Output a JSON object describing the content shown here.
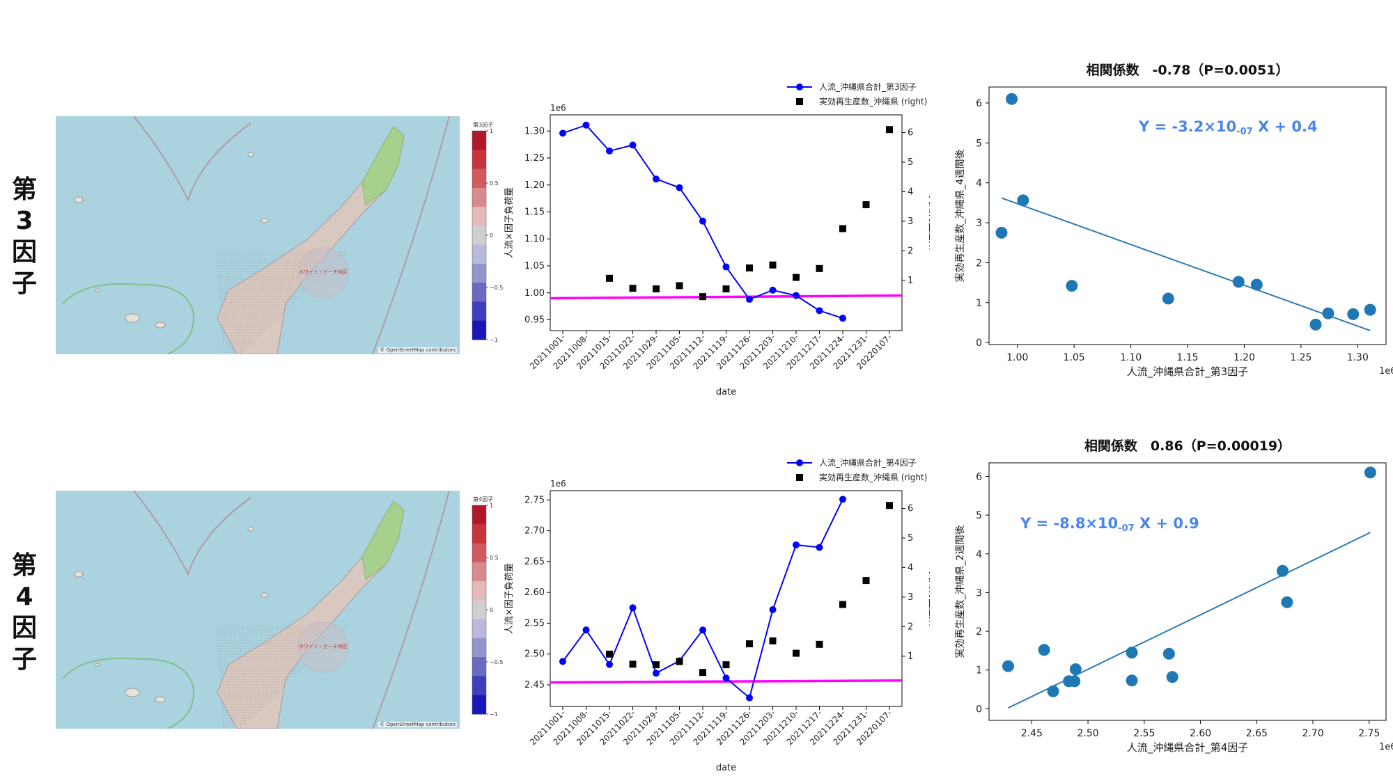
{
  "rows": [
    {
      "label_chars": [
        "第",
        "3",
        "因",
        "子"
      ],
      "map": {
        "colorbar_title": "第3因子",
        "colorbar_ticks": [
          "1",
          "0.5",
          "0",
          "−0.5",
          "−1"
        ],
        "attribution": "© OpenStreetMap contributors",
        "place_label": "ホワイト・ビーチ地区"
      },
      "chart_data": [
        {
          "type": "line",
          "unit_label": "1e6",
          "xlabel": "date",
          "ylabel": "人流×因子負荷量",
          "ylabel_right": "実効再生産数",
          "ylim": [
            0.93,
            1.33
          ],
          "yticks": [
            "0.95",
            "1.00",
            "1.05",
            "1.10",
            "1.15",
            "1.20",
            "1.25",
            "1.30"
          ],
          "ylim_right": [
            -0.7,
            6.6
          ],
          "yticks_right": [
            "1",
            "2",
            "3",
            "4",
            "5",
            "6"
          ],
          "categories": [
            "20211001-",
            "20211008-",
            "20211015-",
            "20211022-",
            "20211029-",
            "20211105-",
            "20211112-",
            "20211119-",
            "20211126-",
            "20211203-",
            "20211210-",
            "20211217-",
            "20211224-",
            "20211231-",
            "20220107-"
          ],
          "series": [
            {
              "name": "人流_沖縄県合計_第3因子",
              "axis": "left",
              "color": "#0000ff",
              "marker": "circle",
              "values": [
                1.296,
                1.311,
                1.263,
                1.274,
                1.211,
                1.195,
                1.133,
                1.048,
                0.988,
                1.005,
                0.995,
                0.967,
                0.953,
                null,
                null
              ]
            },
            {
              "name": "実効再生産数_沖縄県 (right)",
              "axis": "right",
              "color": "#000000",
              "marker": "square",
              "values": [
                null,
                null,
                1.07,
                0.73,
                0.71,
                0.82,
                0.45,
                0.71,
                1.42,
                1.52,
                1.1,
                1.4,
                2.75,
                3.56,
                6.1
              ]
            }
          ],
          "reference_line": {
            "color": "#ff00ff",
            "y_start": 0.99,
            "y_end": 0.995
          },
          "legend_position": "top-right"
        },
        {
          "type": "scatter",
          "title": "相関係数　-0.78（P=0.0051）",
          "unit_label": "1e6",
          "xlabel": "人流_沖縄県合計_第3因子",
          "ylabel": "実効再生産数_沖縄県_4週間後",
          "xlim": [
            0.975,
            1.325
          ],
          "xticks": [
            "1.00",
            "1.05",
            "1.10",
            "1.15",
            "1.20",
            "1.25",
            "1.30"
          ],
          "ylim": [
            -0.05,
            6.4
          ],
          "yticks": [
            "0",
            "1",
            "2",
            "3",
            "4",
            "5",
            "6"
          ],
          "x": [
            0.995,
            1.005,
            0.986,
            1.048,
            1.133,
            1.195,
            1.211,
            1.263,
            1.274,
            1.296,
            1.311
          ],
          "y": [
            6.1,
            3.56,
            2.75,
            1.42,
            1.1,
            1.52,
            1.45,
            0.45,
            0.73,
            0.71,
            0.82
          ],
          "fit": {
            "x_start": 0.986,
            "y_start": 3.62,
            "x_end": 1.311,
            "y_end": 0.3
          },
          "equation": {
            "prefix": "Y = -3.2×10",
            "exponent": "-07",
            "suffix": " X + 0.4"
          },
          "point_color": "#1f77b4",
          "equation_color": "#4a86e8"
        }
      ]
    },
    {
      "label_chars": [
        "第",
        "4",
        "因",
        "子"
      ],
      "map": {
        "colorbar_title": "第4因子",
        "colorbar_ticks": [
          "1",
          "0.5",
          "0",
          "−0.5",
          "−1"
        ],
        "attribution": "© OpenStreetMap contributors",
        "place_label": "ホワイト・ビーチ地区"
      },
      "chart_data": [
        {
          "type": "line",
          "unit_label": "1e6",
          "xlabel": "date",
          "ylabel": "人流×因子負荷量",
          "ylabel_right": "実効再生産数",
          "ylim": [
            2.415,
            2.765
          ],
          "yticks": [
            "2.45",
            "2.50",
            "2.55",
            "2.60",
            "2.65",
            "2.70",
            "2.75"
          ],
          "ylim_right": [
            -0.7,
            6.6
          ],
          "yticks_right": [
            "1",
            "2",
            "3",
            "4",
            "5",
            "6"
          ],
          "categories": [
            "20211001-",
            "20211008-",
            "20211015-",
            "20211022-",
            "20211029-",
            "20211105-",
            "20211112-",
            "20211119-",
            "20211126-",
            "20211203-",
            "20211210-",
            "20211217-",
            "20211224-",
            "20211231-",
            "20220107-"
          ],
          "series": [
            {
              "name": "人流_沖縄県合計_第4因子",
              "axis": "left",
              "color": "#0000ff",
              "marker": "circle",
              "values": [
                2.488,
                2.539,
                2.483,
                2.575,
                2.469,
                2.489,
                2.539,
                2.461,
                2.429,
                2.572,
                2.677,
                2.673,
                2.751,
                null,
                null
              ]
            },
            {
              "name": "実効再生産数_沖縄県 (right)",
              "axis": "right",
              "color": "#000000",
              "marker": "square",
              "values": [
                null,
                null,
                1.07,
                0.73,
                0.71,
                0.82,
                0.45,
                0.71,
                1.42,
                1.52,
                1.1,
                1.4,
                2.75,
                3.56,
                6.1
              ]
            }
          ],
          "reference_line": {
            "color": "#ff00ff",
            "y_start": 2.454,
            "y_end": 2.457
          },
          "legend_position": "top-right"
        },
        {
          "type": "scatter",
          "title": "相関係数　0.86（P=0.00019）",
          "unit_label": "1e6",
          "xlabel": "人流_沖縄県合計_第4因子",
          "ylabel": "実効再生産数_沖縄県_2週間後",
          "xlim": [
            2.412,
            2.765
          ],
          "xticks": [
            "2.45",
            "2.50",
            "2.55",
            "2.60",
            "2.65",
            "2.70",
            "2.75"
          ],
          "ylim": [
            -0.3,
            6.35
          ],
          "yticks": [
            "0",
            "1",
            "2",
            "3",
            "4",
            "5",
            "6"
          ],
          "x": [
            2.429,
            2.461,
            2.469,
            2.483,
            2.488,
            2.489,
            2.539,
            2.539,
            2.572,
            2.575,
            2.673,
            2.677,
            2.751
          ],
          "y": [
            1.1,
            1.52,
            0.45,
            0.71,
            0.71,
            1.02,
            1.45,
            0.73,
            1.42,
            0.82,
            3.56,
            2.75,
            6.1
          ],
          "fit": {
            "x_start": 2.429,
            "y_start": 0.02,
            "x_end": 2.751,
            "y_end": 4.55
          },
          "equation": {
            "prefix": "Y = -8.8×10",
            "exponent": "-07",
            "suffix": " X + 0.9"
          },
          "point_color": "#1f77b4",
          "equation_color": "#4a86e8"
        }
      ]
    }
  ]
}
